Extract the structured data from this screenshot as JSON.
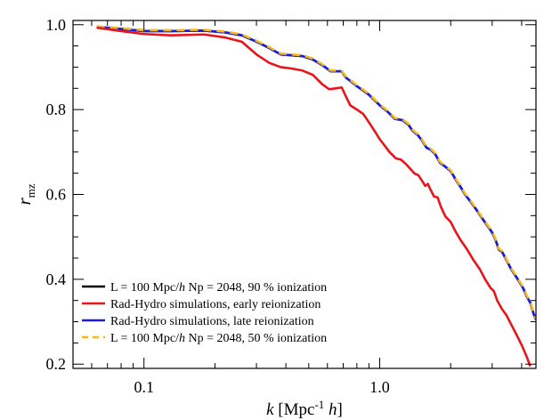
{
  "chart_data": {
    "type": "line",
    "xscale": "log",
    "xlim": [
      0.05,
      4.6
    ],
    "ylim": [
      0.19,
      1.01
    ],
    "xticks": [
      {
        "value": 0.1,
        "label": "0.1"
      },
      {
        "value": 1.0,
        "label": "1.0"
      }
    ],
    "yticks": [
      {
        "value": 0.2,
        "label": "0.2"
      },
      {
        "value": 0.4,
        "label": "0.4"
      },
      {
        "value": 0.6,
        "label": "0.6"
      },
      {
        "value": 0.8,
        "label": "0.8"
      },
      {
        "value": 1.0,
        "label": "1.0"
      }
    ],
    "xlabel": {
      "italic": "k",
      "rest": " [Mpc",
      "sup": "-1",
      "tail_italic": " h",
      "close": "]"
    },
    "ylabel": {
      "italic": "r",
      "sub": "mz"
    },
    "grid": false,
    "legend": {
      "placement": "bottom-left",
      "entries": [
        {
          "parts": [
            {
              "t": "L = 100 Mpc/"
            },
            {
              "t": "h",
              "i": true
            },
            {
              "t": " Np = 2048, 90 % ionization"
            }
          ],
          "color": "#000000",
          "dash": false
        },
        {
          "parts": [
            {
              "t": "Rad-Hydro simulations, early reionization"
            }
          ],
          "color": "#e8151b",
          "dash": false
        },
        {
          "parts": [
            {
              "t": "Rad-Hydro simulations, late reionization"
            }
          ],
          "color": "#1c1ce0",
          "dash": false
        },
        {
          "parts": [
            {
              "t": "L = 100 Mpc/"
            },
            {
              "t": "h",
              "i": true
            },
            {
              "t": " Np = 2048, 50 % ionization"
            }
          ],
          "color": "#f2b81c",
          "dash": true
        }
      ]
    },
    "series": [
      {
        "key": "black",
        "color": "#000000",
        "dash": false,
        "points": [
          [
            0.063,
            0.995
          ],
          [
            0.08,
            0.99
          ],
          [
            0.1,
            0.985
          ],
          [
            0.13,
            0.985
          ],
          [
            0.18,
            0.986
          ],
          [
            0.22,
            0.982
          ],
          [
            0.26,
            0.975
          ],
          [
            0.3,
            0.96
          ],
          [
            0.34,
            0.945
          ],
          [
            0.38,
            0.93
          ],
          [
            0.42,
            0.928
          ],
          [
            0.47,
            0.926
          ],
          [
            0.52,
            0.918
          ],
          [
            0.57,
            0.905
          ],
          [
            0.62,
            0.89
          ],
          [
            0.66,
            0.89
          ],
          [
            0.69,
            0.89
          ],
          [
            0.72,
            0.875
          ],
          [
            0.76,
            0.865
          ],
          [
            0.8,
            0.855
          ],
          [
            0.85,
            0.845
          ],
          [
            0.9,
            0.835
          ],
          [
            0.95,
            0.822
          ],
          [
            1.0,
            0.81
          ],
          [
            1.08,
            0.795
          ],
          [
            1.16,
            0.778
          ],
          [
            1.25,
            0.775
          ],
          [
            1.32,
            0.765
          ],
          [
            1.38,
            0.75
          ],
          [
            1.45,
            0.74
          ],
          [
            1.52,
            0.725
          ],
          [
            1.58,
            0.71
          ],
          [
            1.65,
            0.705
          ],
          [
            1.72,
            0.695
          ],
          [
            1.8,
            0.675
          ],
          [
            1.9,
            0.665
          ],
          [
            2.0,
            0.655
          ],
          [
            2.1,
            0.635
          ],
          [
            2.2,
            0.618
          ],
          [
            2.3,
            0.6
          ],
          [
            2.45,
            0.58
          ],
          [
            2.6,
            0.56
          ],
          [
            2.75,
            0.54
          ],
          [
            2.9,
            0.522
          ],
          [
            3.0,
            0.51
          ],
          [
            3.1,
            0.493
          ],
          [
            3.2,
            0.47
          ],
          [
            3.3,
            0.465
          ],
          [
            3.45,
            0.445
          ],
          [
            3.6,
            0.425
          ],
          [
            3.75,
            0.41
          ],
          [
            3.9,
            0.395
          ],
          [
            4.05,
            0.38
          ],
          [
            4.2,
            0.36
          ],
          [
            4.35,
            0.345
          ],
          [
            4.5,
            0.318
          ],
          [
            4.6,
            0.305
          ]
        ]
      },
      {
        "key": "blue",
        "color": "#1c1ce0",
        "dash": false,
        "points": [
          [
            0.063,
            0.995
          ],
          [
            0.08,
            0.99
          ],
          [
            0.1,
            0.985
          ],
          [
            0.13,
            0.985
          ],
          [
            0.18,
            0.986
          ],
          [
            0.22,
            0.982
          ],
          [
            0.26,
            0.975
          ],
          [
            0.3,
            0.96
          ],
          [
            0.34,
            0.945
          ],
          [
            0.38,
            0.93
          ],
          [
            0.42,
            0.928
          ],
          [
            0.47,
            0.926
          ],
          [
            0.52,
            0.918
          ],
          [
            0.57,
            0.905
          ],
          [
            0.62,
            0.89
          ],
          [
            0.66,
            0.89
          ],
          [
            0.69,
            0.89
          ],
          [
            0.72,
            0.875
          ],
          [
            0.76,
            0.865
          ],
          [
            0.8,
            0.855
          ],
          [
            0.85,
            0.845
          ],
          [
            0.9,
            0.835
          ],
          [
            0.95,
            0.822
          ],
          [
            1.0,
            0.81
          ],
          [
            1.08,
            0.795
          ],
          [
            1.16,
            0.778
          ],
          [
            1.25,
            0.775
          ],
          [
            1.32,
            0.765
          ],
          [
            1.38,
            0.75
          ],
          [
            1.45,
            0.74
          ],
          [
            1.52,
            0.725
          ],
          [
            1.58,
            0.71
          ],
          [
            1.65,
            0.705
          ],
          [
            1.72,
            0.695
          ],
          [
            1.8,
            0.675
          ],
          [
            1.9,
            0.665
          ],
          [
            2.0,
            0.655
          ],
          [
            2.1,
            0.635
          ],
          [
            2.2,
            0.618
          ],
          [
            2.3,
            0.6
          ],
          [
            2.45,
            0.58
          ],
          [
            2.6,
            0.56
          ],
          [
            2.75,
            0.54
          ],
          [
            2.9,
            0.522
          ],
          [
            3.0,
            0.51
          ],
          [
            3.1,
            0.493
          ],
          [
            3.2,
            0.47
          ],
          [
            3.3,
            0.465
          ],
          [
            3.45,
            0.445
          ],
          [
            3.6,
            0.425
          ],
          [
            3.75,
            0.41
          ],
          [
            3.9,
            0.395
          ],
          [
            4.05,
            0.38
          ],
          [
            4.2,
            0.36
          ],
          [
            4.35,
            0.345
          ],
          [
            4.5,
            0.318
          ],
          [
            4.6,
            0.305
          ]
        ]
      },
      {
        "key": "yellow",
        "color": "#f2b81c",
        "dash": true,
        "points": [
          [
            0.063,
            0.996
          ],
          [
            0.08,
            0.992
          ],
          [
            0.1,
            0.987
          ],
          [
            0.13,
            0.987
          ],
          [
            0.18,
            0.988
          ],
          [
            0.22,
            0.984
          ],
          [
            0.26,
            0.977
          ],
          [
            0.3,
            0.962
          ],
          [
            0.34,
            0.947
          ],
          [
            0.38,
            0.932
          ],
          [
            0.42,
            0.93
          ],
          [
            0.47,
            0.928
          ],
          [
            0.52,
            0.92
          ],
          [
            0.57,
            0.907
          ],
          [
            0.62,
            0.892
          ],
          [
            0.66,
            0.892
          ],
          [
            0.69,
            0.891
          ],
          [
            0.72,
            0.877
          ],
          [
            0.76,
            0.867
          ],
          [
            0.8,
            0.857
          ],
          [
            0.85,
            0.847
          ],
          [
            0.9,
            0.837
          ],
          [
            0.95,
            0.824
          ],
          [
            1.0,
            0.812
          ],
          [
            1.08,
            0.797
          ],
          [
            1.16,
            0.78
          ],
          [
            1.25,
            0.777
          ],
          [
            1.32,
            0.767
          ],
          [
            1.38,
            0.752
          ],
          [
            1.45,
            0.742
          ],
          [
            1.52,
            0.727
          ],
          [
            1.58,
            0.712
          ],
          [
            1.65,
            0.707
          ],
          [
            1.72,
            0.697
          ],
          [
            1.8,
            0.677
          ],
          [
            1.9,
            0.667
          ],
          [
            2.0,
            0.657
          ],
          [
            2.1,
            0.637
          ],
          [
            2.2,
            0.62
          ],
          [
            2.3,
            0.602
          ],
          [
            2.45,
            0.582
          ],
          [
            2.6,
            0.562
          ],
          [
            2.75,
            0.542
          ],
          [
            2.9,
            0.524
          ],
          [
            3.0,
            0.512
          ],
          [
            3.1,
            0.495
          ],
          [
            3.2,
            0.472
          ],
          [
            3.3,
            0.467
          ],
          [
            3.45,
            0.447
          ],
          [
            3.6,
            0.427
          ],
          [
            3.75,
            0.412
          ],
          [
            3.9,
            0.397
          ],
          [
            4.05,
            0.382
          ],
          [
            4.2,
            0.362
          ],
          [
            4.35,
            0.347
          ],
          [
            4.5,
            0.32
          ],
          [
            4.6,
            0.307
          ]
        ]
      },
      {
        "key": "red",
        "color": "#e8151b",
        "dash": false,
        "points": [
          [
            0.063,
            0.993
          ],
          [
            0.08,
            0.985
          ],
          [
            0.1,
            0.978
          ],
          [
            0.13,
            0.975
          ],
          [
            0.18,
            0.977
          ],
          [
            0.22,
            0.97
          ],
          [
            0.26,
            0.96
          ],
          [
            0.3,
            0.93
          ],
          [
            0.34,
            0.91
          ],
          [
            0.38,
            0.9
          ],
          [
            0.42,
            0.897
          ],
          [
            0.47,
            0.892
          ],
          [
            0.52,
            0.882
          ],
          [
            0.57,
            0.86
          ],
          [
            0.61,
            0.848
          ],
          [
            0.65,
            0.85
          ],
          [
            0.69,
            0.852
          ],
          [
            0.72,
            0.83
          ],
          [
            0.75,
            0.81
          ],
          [
            0.8,
            0.8
          ],
          [
            0.85,
            0.79
          ],
          [
            0.9,
            0.77
          ],
          [
            0.95,
            0.75
          ],
          [
            1.0,
            0.73
          ],
          [
            1.05,
            0.715
          ],
          [
            1.1,
            0.7
          ],
          [
            1.17,
            0.685
          ],
          [
            1.23,
            0.682
          ],
          [
            1.29,
            0.672
          ],
          [
            1.35,
            0.66
          ],
          [
            1.4,
            0.65
          ],
          [
            1.46,
            0.645
          ],
          [
            1.52,
            0.63
          ],
          [
            1.56,
            0.62
          ],
          [
            1.6,
            0.625
          ],
          [
            1.64,
            0.612
          ],
          [
            1.7,
            0.595
          ],
          [
            1.76,
            0.593
          ],
          [
            1.82,
            0.57
          ],
          [
            1.9,
            0.548
          ],
          [
            2.0,
            0.535
          ],
          [
            2.1,
            0.512
          ],
          [
            2.2,
            0.493
          ],
          [
            2.35,
            0.47
          ],
          [
            2.5,
            0.445
          ],
          [
            2.65,
            0.425
          ],
          [
            2.8,
            0.4
          ],
          [
            2.95,
            0.38
          ],
          [
            3.05,
            0.372
          ],
          [
            3.15,
            0.35
          ],
          [
            3.3,
            0.33
          ],
          [
            3.45,
            0.315
          ],
          [
            3.6,
            0.295
          ],
          [
            3.8,
            0.27
          ],
          [
            4.0,
            0.245
          ],
          [
            4.2,
            0.218
          ],
          [
            4.35,
            0.195
          ]
        ]
      }
    ]
  }
}
